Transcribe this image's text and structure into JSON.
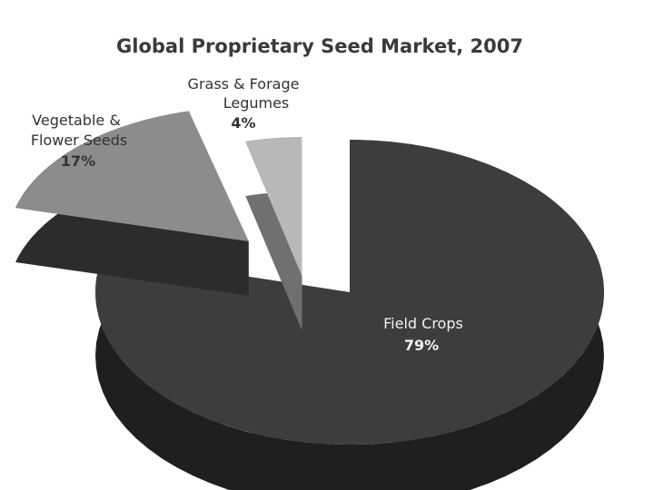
{
  "chart_data": {
    "type": "pie",
    "title": "Global Proprietary Seed Market, 2007",
    "slices": [
      {
        "name": "Field Crops",
        "label_lines": [
          "Field Crops"
        ],
        "percent_label": "79%",
        "value": 79,
        "color": "#3d3d3d",
        "side_color": "#1f1f1f"
      },
      {
        "name": "Vegetable & Flower Seeds",
        "label_lines": [
          "Vegetable &",
          "Flower Seeds"
        ],
        "percent_label": "17%",
        "value": 17,
        "color": "#8c8c8c",
        "side_color": "#2c2c2c"
      },
      {
        "name": "Grass & Forage Legumes",
        "label_lines": [
          "Grass & Forage",
          "Legumes"
        ],
        "percent_label": "4%",
        "value": 4,
        "color": "#b8b8b8",
        "side_color": "#707070"
      }
    ],
    "legend": "none",
    "style": "3d-exploded"
  }
}
